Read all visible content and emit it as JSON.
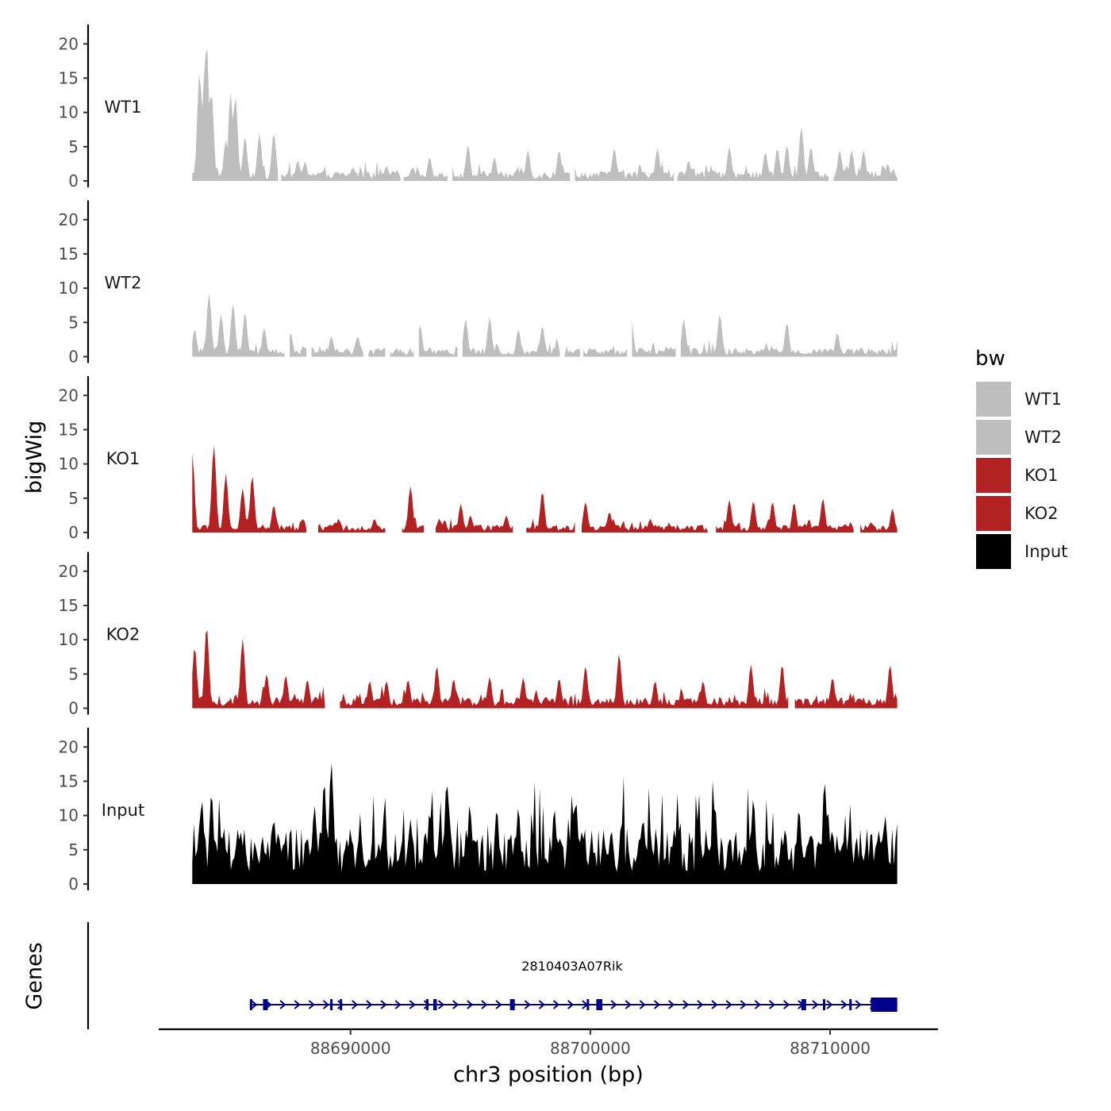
{
  "chart_data": {
    "type": "area",
    "xlabel": "chr3 position (bp)",
    "ylabel": "bigWig",
    "xlim": [
      88682000,
      88714500
    ],
    "x_ticks": [
      88690000,
      88700000,
      88710000
    ],
    "x_tick_labels": [
      "88690000",
      "88700000",
      "88710000"
    ],
    "ylim": [
      0,
      22
    ],
    "y_ticks": [
      0,
      5,
      10,
      15,
      20
    ],
    "y_tick_labels": [
      "0",
      "5",
      "10",
      "15",
      "20"
    ],
    "region": [
      88683400,
      88712800
    ],
    "legend": {
      "title": "bw",
      "position": "right",
      "entries": [
        {
          "label": "WT1",
          "color": "#bebebe"
        },
        {
          "label": "WT2",
          "color": "#bebebe"
        },
        {
          "label": "KO1",
          "color": "#b22222"
        },
        {
          "label": "KO2",
          "color": "#b22222"
        },
        {
          "label": "Input",
          "color": "#000000"
        }
      ]
    },
    "series": [
      {
        "name": "WT1",
        "color": "#bebebe",
        "gaps": [
          [
            88687000,
            88687100
          ],
          [
            88692100,
            88692200
          ],
          [
            88694100,
            88694200
          ],
          [
            88699200,
            88699300
          ],
          [
            88703500,
            88703600
          ],
          [
            88710000,
            88710100
          ]
        ],
        "peaks": [
          [
            88683700,
            16
          ],
          [
            88683900,
            15.5
          ],
          [
            88684000,
            20.3
          ],
          [
            88684200,
            13
          ],
          [
            88684800,
            6
          ],
          [
            88685000,
            13
          ],
          [
            88685200,
            12.5
          ],
          [
            88685600,
            6.5
          ],
          [
            88686200,
            7
          ],
          [
            88686800,
            7
          ],
          [
            88687800,
            3
          ],
          [
            88688100,
            2.8
          ],
          [
            88690100,
            2
          ],
          [
            88691500,
            2.2
          ],
          [
            88692600,
            2
          ],
          [
            88693300,
            3.5
          ],
          [
            88694900,
            5.3
          ],
          [
            88696000,
            3.5
          ],
          [
            88697400,
            4.5
          ],
          [
            88698700,
            4.5
          ],
          [
            88701000,
            4.8
          ],
          [
            88702800,
            4.8
          ],
          [
            88704100,
            3
          ],
          [
            88705800,
            5
          ],
          [
            88707300,
            4.2
          ],
          [
            88707800,
            4.8
          ],
          [
            88708200,
            5.2
          ],
          [
            88708800,
            8
          ],
          [
            88709200,
            5
          ],
          [
            88710400,
            4.5
          ],
          [
            88710900,
            4.5
          ],
          [
            88711400,
            4.5
          ],
          [
            88712400,
            2.5
          ]
        ],
        "base": 0.9
      },
      {
        "name": "WT2",
        "color": "#bebebe",
        "gaps": [
          [
            88687300,
            88687400
          ],
          [
            88688200,
            88688300
          ],
          [
            88690600,
            88690700
          ],
          [
            88691500,
            88691600
          ],
          [
            88692700,
            88692800
          ],
          [
            88694500,
            88694600
          ],
          [
            88698800,
            88698900
          ],
          [
            88699600,
            88699700
          ],
          [
            88701600,
            88701700
          ],
          [
            88703600,
            88703700
          ]
        ],
        "peaks": [
          [
            88683500,
            4
          ],
          [
            88684100,
            9.3
          ],
          [
            88684600,
            6.2
          ],
          [
            88685100,
            7.8
          ],
          [
            88685600,
            6.5
          ],
          [
            88686400,
            4.2
          ],
          [
            88687500,
            3.5
          ],
          [
            88689200,
            3
          ],
          [
            88690300,
            3
          ],
          [
            88692900,
            4.6
          ],
          [
            88694800,
            5.5
          ],
          [
            88695800,
            5.8
          ],
          [
            88697000,
            4
          ],
          [
            88698000,
            4.5
          ],
          [
            88701700,
            5.8
          ],
          [
            88703900,
            5.5
          ],
          [
            88705400,
            6.2
          ],
          [
            88708200,
            5
          ],
          [
            88710300,
            3.5
          ],
          [
            88712800,
            1.4
          ]
        ],
        "base": 0.8
      },
      {
        "name": "KO1",
        "color": "#b22222",
        "gaps": [
          [
            88688200,
            88688600
          ],
          [
            88691500,
            88692100
          ],
          [
            88693100,
            88693500
          ],
          [
            88696800,
            88697300
          ],
          [
            88699400,
            88699600
          ],
          [
            88704900,
            88705200
          ],
          [
            88711000,
            88711200
          ]
        ],
        "peaks": [
          [
            88683400,
            11.5
          ],
          [
            88684300,
            12.8
          ],
          [
            88684800,
            8.6
          ],
          [
            88685500,
            6.5
          ],
          [
            88685900,
            8.3
          ],
          [
            88686800,
            4
          ],
          [
            88688000,
            2
          ],
          [
            88689500,
            2
          ],
          [
            88691000,
            2
          ],
          [
            88692500,
            6.8
          ],
          [
            88693700,
            2
          ],
          [
            88694600,
            4.2
          ],
          [
            88695000,
            2.5
          ],
          [
            88696500,
            2.5
          ],
          [
            88698000,
            6
          ],
          [
            88699800,
            4.5
          ],
          [
            88700800,
            3
          ],
          [
            88702500,
            2
          ],
          [
            88705800,
            4.8
          ],
          [
            88706800,
            4.6
          ],
          [
            88707600,
            4.5
          ],
          [
            88708500,
            4.4
          ],
          [
            88709700,
            5
          ],
          [
            88711700,
            1.5
          ],
          [
            88712600,
            3.5
          ]
        ],
        "base": 0.7
      },
      {
        "name": "KO2",
        "color": "#b22222",
        "gaps": [
          [
            88689000,
            88689500
          ],
          [
            88708300,
            88708500
          ]
        ],
        "peaks": [
          [
            88683500,
            9
          ],
          [
            88684000,
            12
          ],
          [
            88685500,
            10.2
          ],
          [
            88686500,
            5
          ],
          [
            88687300,
            4.8
          ],
          [
            88688200,
            4.2
          ],
          [
            88690800,
            4
          ],
          [
            88691500,
            4
          ],
          [
            88692400,
            4.2
          ],
          [
            88693600,
            6.2
          ],
          [
            88694300,
            4.3
          ],
          [
            88695800,
            4.6
          ],
          [
            88697200,
            4.5
          ],
          [
            88698700,
            4.4
          ],
          [
            88699800,
            6.2
          ],
          [
            88701200,
            8
          ],
          [
            88702700,
            4
          ],
          [
            88704700,
            4
          ],
          [
            88706700,
            6.4
          ],
          [
            88708000,
            6.4
          ],
          [
            88710100,
            4.5
          ],
          [
            88712500,
            6.4
          ]
        ],
        "base": 1.0
      },
      {
        "name": "Input",
        "color": "#000000",
        "gaps": [],
        "peaks": [
          [
            88683800,
            12.3
          ],
          [
            88684200,
            13.3
          ],
          [
            88685300,
            8
          ],
          [
            88686800,
            9.5
          ],
          [
            88688500,
            11.5
          ],
          [
            88688900,
            15
          ],
          [
            88689200,
            17.8
          ],
          [
            88690400,
            8.5
          ],
          [
            88692500,
            9.5
          ],
          [
            88693300,
            10.5
          ],
          [
            88694100,
            11
          ],
          [
            88695000,
            10.2
          ],
          [
            88696100,
            11
          ],
          [
            88697000,
            11.2
          ],
          [
            88698500,
            11
          ],
          [
            88699400,
            12.2
          ],
          [
            88701300,
            9
          ],
          [
            88702200,
            9.5
          ],
          [
            88704500,
            9.7
          ],
          [
            88705200,
            11.5
          ],
          [
            88706800,
            12.5
          ],
          [
            88708700,
            11
          ],
          [
            88709900,
            10.8
          ],
          [
            88710600,
            6
          ],
          [
            88712300,
            10
          ],
          [
            88712800,
            8.8
          ]
        ],
        "base": 5.0
      }
    ],
    "genes_panel": {
      "ylabel": "Genes",
      "gene": "2810403A07Rik",
      "start": 88685800,
      "end": 88712800,
      "strand": "+",
      "color": "#00008b",
      "exons": [
        [
          88685800,
          88685900
        ],
        [
          88686350,
          88686550
        ],
        [
          88689150,
          88689250
        ],
        [
          88689550,
          88689650
        ],
        [
          88693150,
          88693250
        ],
        [
          88693450,
          88693600
        ],
        [
          88696650,
          88696850
        ],
        [
          88699850,
          88699950
        ],
        [
          88700250,
          88700500
        ],
        [
          88708800,
          88709000
        ],
        [
          88709700,
          88709800
        ],
        [
          88710800,
          88710900
        ],
        [
          88711700,
          88712800
        ]
      ]
    }
  }
}
